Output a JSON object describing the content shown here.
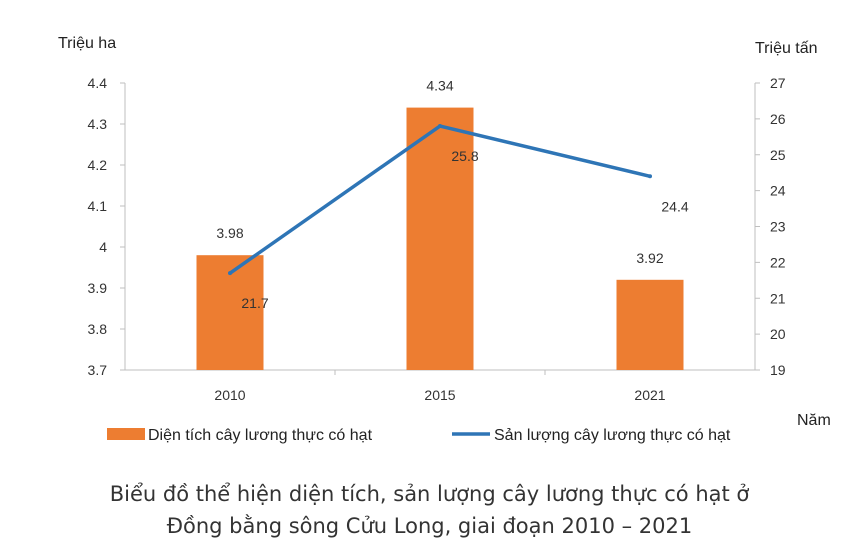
{
  "chart_data": {
    "type": "bar",
    "categories": [
      "2010",
      "2015",
      "2021"
    ],
    "series": [
      {
        "name": "Diện tích cây lương thực có hạt",
        "type": "bar",
        "axis": "left",
        "color": "#ED7D31",
        "values": [
          3.98,
          4.34,
          3.92
        ],
        "labels": [
          "3.98",
          "4.34",
          "3.92"
        ]
      },
      {
        "name": "Sản lượng cây lương thực có hạt",
        "type": "line",
        "axis": "right",
        "color": "#2E75B6",
        "values": [
          21.7,
          25.8,
          24.4
        ],
        "labels": [
          "21.7",
          "25.8",
          "24.4"
        ]
      }
    ],
    "y_left": {
      "label": "Triệu ha",
      "min": 3.7,
      "max": 4.4,
      "ticks": [
        "3.7",
        "3.8",
        "3.9",
        "4",
        "4.1",
        "4.2",
        "4.3",
        "4.4"
      ]
    },
    "y_right": {
      "label": "Triệu tấn",
      "min": 19,
      "max": 27,
      "ticks": [
        "19",
        "20",
        "21",
        "22",
        "23",
        "24",
        "25",
        "26",
        "27"
      ]
    },
    "xlabel": "Năm",
    "title_lines": [
      "Biểu đồ thể hiện diện tích, sản lượng cây lương thực có hạt ở",
      "Đồng bằng sông Cửu Long, giai đoạn 2010 – 2021"
    ],
    "legend_position": "bottom",
    "grid": false
  }
}
